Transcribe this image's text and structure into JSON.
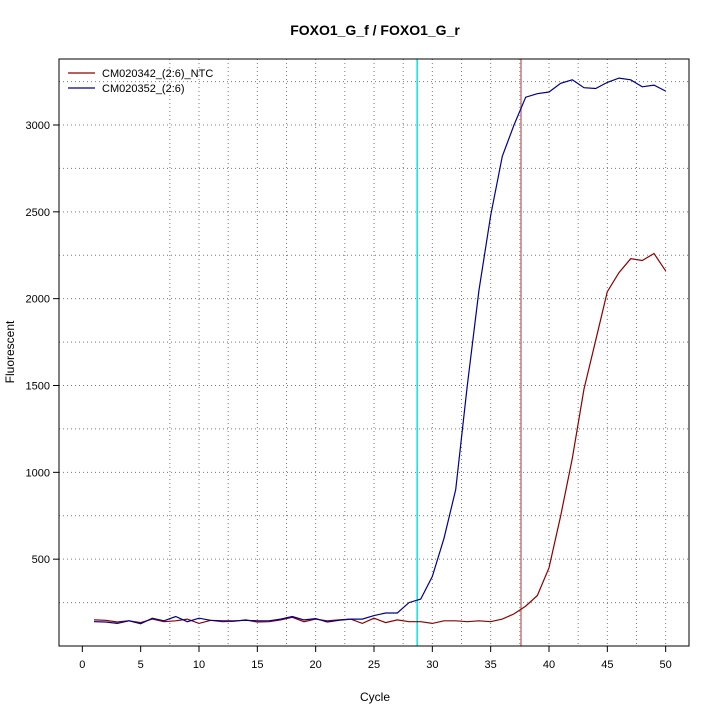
{
  "chart_data": {
    "type": "line",
    "title": "FOXO1_G_f / FOXO1_G_r",
    "xlabel": "Cycle",
    "ylabel": "Fluorescent",
    "xlim": [
      -2,
      52
    ],
    "ylim": [
      0,
      3380
    ],
    "x_ticks": [
      0,
      5,
      10,
      15,
      20,
      25,
      30,
      35,
      40,
      45,
      50
    ],
    "y_ticks": [
      500,
      1000,
      1500,
      2000,
      2500,
      3000
    ],
    "grid": true,
    "legend_position": "top-left",
    "x": [
      1,
      2,
      3,
      4,
      5,
      6,
      7,
      8,
      9,
      10,
      11,
      12,
      13,
      14,
      15,
      16,
      17,
      18,
      19,
      20,
      21,
      22,
      23,
      24,
      25,
      26,
      27,
      28,
      29,
      30,
      31,
      32,
      33,
      34,
      35,
      36,
      37,
      38,
      39,
      40,
      41,
      42,
      43,
      44,
      45,
      46,
      47,
      48,
      49,
      50
    ],
    "series": [
      {
        "name": "CM020342_(2:6)_NTC",
        "color": "#8b0000",
        "values": [
          150,
          148,
          138,
          145,
          135,
          155,
          140,
          145,
          155,
          130,
          148,
          140,
          142,
          150,
          138,
          140,
          150,
          165,
          140,
          155,
          145,
          150,
          155,
          130,
          160,
          135,
          150,
          140,
          140,
          130,
          145,
          145,
          140,
          145,
          140,
          155,
          185,
          230,
          290,
          450,
          750,
          1080,
          1480,
          1760,
          2040,
          2150,
          2230,
          2220,
          2260,
          2160
        ]
      },
      {
        "name": "CM020352_(2:6)",
        "color": "#00008b",
        "values": [
          140,
          138,
          130,
          145,
          128,
          160,
          145,
          170,
          140,
          160,
          148,
          145,
          145,
          148,
          145,
          145,
          155,
          170,
          150,
          158,
          138,
          148,
          155,
          155,
          175,
          190,
          190,
          250,
          270,
          400,
          620,
          900,
          1500,
          2050,
          2480,
          2820,
          3000,
          3160,
          3180,
          3190,
          3240,
          3260,
          3215,
          3210,
          3245,
          3270,
          3260,
          3220,
          3230,
          3195
        ]
      }
    ],
    "vertical_lines": [
      {
        "x": 28.7,
        "color": "#00e5e5"
      },
      {
        "x": 37.6,
        "color": "#c87878"
      }
    ]
  }
}
